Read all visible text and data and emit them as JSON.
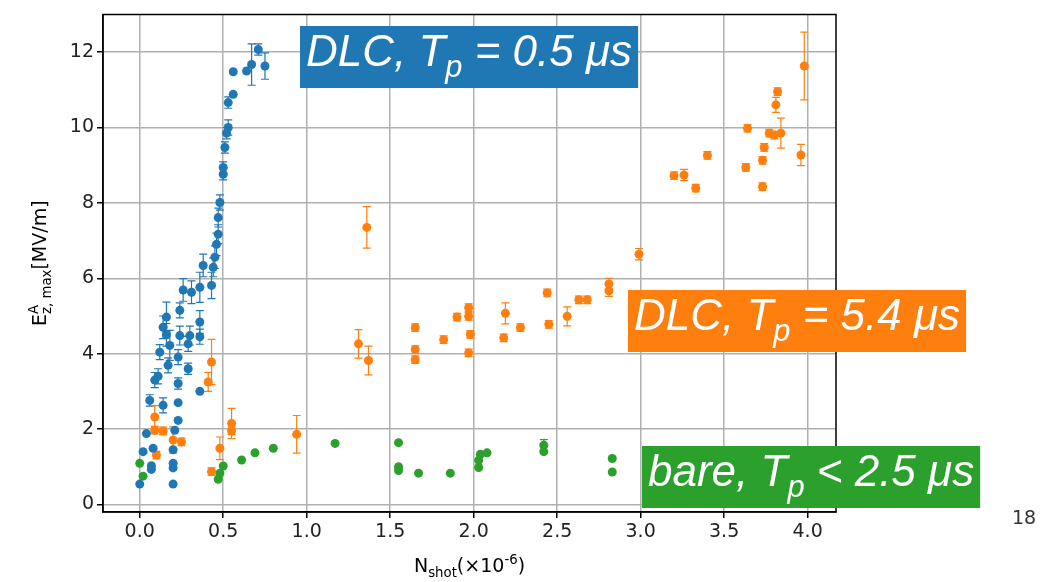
{
  "chart_data": {
    "type": "scatter",
    "xlabel": "N$_{shot}$(×10$^{-6}$)",
    "ylabel": "E$^{A}$$_{z, max}$[MV/m]",
    "xlim": [
      -0.22,
      4.17
    ],
    "xticks": [
      {
        "value": 0,
        "label": "0.0"
      },
      {
        "value": 0.5,
        "label": "0.5"
      },
      {
        "value": 1,
        "label": "1.0"
      },
      {
        "value": 1.5,
        "label": "1.5"
      },
      {
        "value": 2,
        "label": "2.0"
      },
      {
        "value": 2.5,
        "label": "2.5"
      },
      {
        "value": 3,
        "label": "3.0"
      },
      {
        "value": 3.5,
        "label": "3.5"
      },
      {
        "value": 4,
        "label": "4.0"
      }
    ],
    "ylim": [
      -0.2,
      13.0
    ],
    "yticks": [
      0,
      2,
      4,
      6,
      8,
      10,
      12
    ],
    "grid": true,
    "legend": false,
    "annotations": [
      "18"
    ],
    "series": [
      {
        "name": "DLC, T$_{p}$ = 0.5 μs",
        "color": "#1f77b4",
        "x": [
          0.71,
          0.67,
          0.75,
          0.56,
          0.64,
          0.56,
          0.53,
          0.53,
          0.52,
          0.51,
          0.5,
          0.5,
          0.48,
          0.47,
          0.47,
          0.46,
          0.45,
          0.44,
          0.38,
          0.43,
          0.36,
          0.31,
          0.26,
          0.24,
          0.36,
          0.16,
          0.14,
          0.16,
          0.24,
          0.3,
          0.36,
          0.29,
          0.18,
          0.12,
          0.23,
          0.17,
          0.29,
          0.11,
          0.23,
          0.36,
          0.09,
          0.06,
          0.14,
          0.23,
          0.23,
          0.04,
          0.21,
          0.02,
          0.08,
          0.2,
          0.2,
          0.07,
          0.07,
          0.2,
          0,
          0.2
        ],
        "values": [
          12.07,
          11.67,
          11.63,
          11.48,
          11.5,
          10.88,
          10.66,
          10,
          9.85,
          9.47,
          8.94,
          8.76,
          8.01,
          7.61,
          7.17,
          6.9,
          6.56,
          6.29,
          6.34,
          5.81,
          5.76,
          5.63,
          5.69,
          5.15,
          4.84,
          4.97,
          4.7,
          4.5,
          4.48,
          4.48,
          4.45,
          4.26,
          4.22,
          4.04,
          3.91,
          3.69,
          3.6,
          3.4,
          3.21,
          3,
          3.3,
          2.76,
          2.63,
          2.7,
          2.23,
          1.88,
          1.97,
          1.4,
          1.49,
          1.45,
          1.09,
          1.03,
          0.93,
          0.97,
          0.54,
          0.54
        ],
        "errors": [
          0.15,
          0.55,
          0.35,
          null,
          null,
          null,
          0.15,
          0.2,
          0.15,
          0.15,
          0.15,
          0.15,
          0.2,
          0.25,
          0.25,
          0.3,
          0.3,
          0.25,
          0.3,
          0.35,
          0.4,
          0.3,
          0.3,
          0.2,
          0.3,
          0.4,
          0.3,
          0.3,
          0.25,
          0.25,
          0.2,
          0.2,
          0.4,
          0.2,
          0.2,
          0.2,
          0.15,
          0.2,
          0.15,
          null,
          0.2,
          0.15,
          0.2,
          null,
          null,
          null,
          null,
          null,
          null,
          null,
          null,
          null,
          null,
          null,
          null,
          null
        ]
      },
      {
        "name": "DLC, T$_{p}$ = 5.4 μs",
        "color": "#ff7f0e",
        "x": [
          0.43,
          0.41,
          0.09,
          0.09,
          0.14,
          0.2,
          0.25,
          0.1,
          0.43,
          0.48,
          0.55,
          0.55,
          0.94,
          1.31,
          1.37,
          1.36,
          1.65,
          1.65,
          1.65,
          1.82,
          1.9,
          1.97,
          1.97,
          1.98,
          1.97,
          2.19,
          2.18,
          2.28,
          2.44,
          2.45,
          2.56,
          2.63,
          2.68,
          2.81,
          2.81,
          2.99,
          3.2,
          3.26,
          3.33,
          3.4,
          3.63,
          3.64,
          3.73,
          3.73,
          3.74,
          3.77,
          3.84,
          3.8,
          3.81,
          3.82,
          3.96,
          3.98
        ],
        "values": [
          3.78,
          3.25,
          2.32,
          1.97,
          1.95,
          1.71,
          1.66,
          1.31,
          0.87,
          1.49,
          2.15,
          1.95,
          1.86,
          4.26,
          3.82,
          7.35,
          4.69,
          4.11,
          3.84,
          4.37,
          4.97,
          5.22,
          4.99,
          4.51,
          4.02,
          5.07,
          4.42,
          4.69,
          5.61,
          4.78,
          4.99,
          5.43,
          5.43,
          5.85,
          5.67,
          6.64,
          8.72,
          8.74,
          8.39,
          9.26,
          8.94,
          9.98,
          8.43,
          9.13,
          9.47,
          9.85,
          9.85,
          9.8,
          10.6,
          10.95,
          9.27,
          11.63
        ],
        "errors": [
          0.6,
          0.25,
          0.3,
          0.1,
          0.1,
          0.35,
          0.1,
          0.1,
          0.1,
          0.3,
          0.4,
          0.1,
          0.5,
          0.38,
          0.38,
          0.55,
          0.1,
          0.1,
          0.1,
          0.1,
          0.1,
          0.1,
          0.1,
          0.1,
          0.1,
          0.28,
          0.1,
          0.1,
          0.1,
          0.1,
          0.25,
          0.1,
          0.1,
          0.15,
          0.15,
          0.15,
          0.1,
          0.15,
          0.1,
          0.1,
          0.1,
          0.1,
          0.1,
          0.1,
          0.1,
          0.1,
          0.4,
          0.1,
          0.2,
          0.1,
          0.28,
          0.9
        ]
      },
      {
        "name": "bare, T$_{p}$ < 2.5 μs",
        "color": "#2ca02c",
        "x": [
          0,
          0.02,
          0.5,
          0.48,
          0.47,
          0.61,
          0.69,
          0.8,
          1.17,
          1.55,
          1.55,
          1.55,
          1.67,
          1.86,
          2.03,
          2.03,
          2.04,
          2.08,
          2.42,
          2.42,
          2.83,
          2.83
        ],
        "values": [
          1.09,
          0.75,
          1.02,
          0.83,
          0.67,
          1.18,
          1.37,
          1.49,
          1.62,
          1.64,
          1,
          0.9,
          0.83,
          0.83,
          0.98,
          1.17,
          1.33,
          1.37,
          1.57,
          1.4,
          1.22,
          0.86
        ],
        "errors": [
          null,
          null,
          null,
          null,
          null,
          null,
          null,
          null,
          null,
          null,
          null,
          null,
          null,
          null,
          null,
          null,
          null,
          null,
          0.15,
          null,
          null,
          null
        ]
      }
    ]
  }
}
